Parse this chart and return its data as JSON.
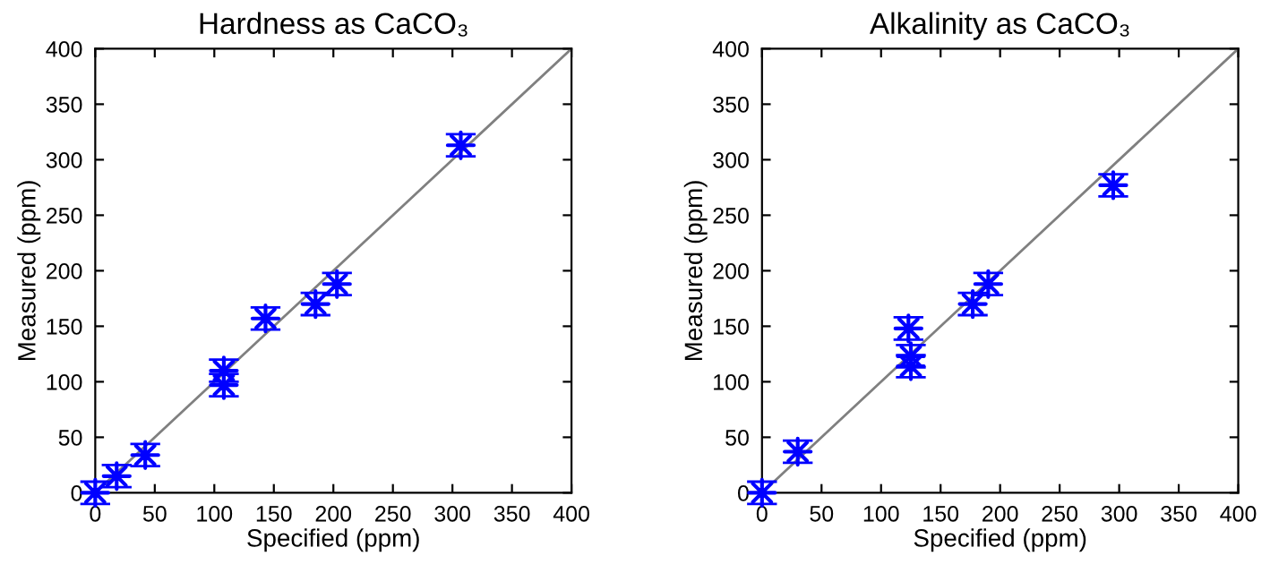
{
  "chart_data": [
    {
      "type": "scatter",
      "title": "Hardness as CaCO₃",
      "xlabel": "Specified (ppm)",
      "ylabel": "Measured (ppm)",
      "xlim": [
        0,
        400
      ],
      "ylim": [
        0,
        400
      ],
      "xticks": [
        0,
        50,
        100,
        150,
        200,
        250,
        300,
        350,
        400
      ],
      "yticks": [
        0,
        50,
        100,
        150,
        200,
        250,
        300,
        350,
        400
      ],
      "grid": false,
      "legend": false,
      "marker": "star",
      "series": [
        {
          "color": "#0000ff",
          "x": [
            0,
            18,
            42,
            108,
            108,
            143,
            185,
            203,
            307
          ],
          "values": [
            0,
            15,
            34,
            110,
            97,
            157,
            170,
            188,
            313
          ],
          "errors": [
            10,
            10,
            10,
            10,
            10,
            10,
            10,
            10,
            10
          ]
        },
        {
          "type": "line",
          "color": "#808080",
          "marker": "none",
          "x": [
            0,
            400
          ],
          "values": [
            0,
            400
          ]
        }
      ]
    },
    {
      "type": "scatter",
      "title": "Alkalinity as CaCO₃",
      "xlabel": "Specified (ppm)",
      "ylabel": "Measured (ppm)",
      "xlim": [
        0,
        400
      ],
      "ylim": [
        0,
        400
      ],
      "xticks": [
        0,
        50,
        100,
        150,
        200,
        250,
        300,
        350,
        400
      ],
      "yticks": [
        0,
        50,
        100,
        150,
        200,
        250,
        300,
        350,
        400
      ],
      "grid": false,
      "legend": false,
      "marker": "star",
      "series": [
        {
          "color": "#0000ff",
          "x": [
            0,
            30,
            123,
            125,
            125,
            177,
            190,
            295
          ],
          "values": [
            0,
            37,
            148,
            123,
            114,
            170,
            188,
            277
          ],
          "errors": [
            10,
            10,
            10,
            10,
            10,
            10,
            10,
            10
          ]
        },
        {
          "type": "line",
          "color": "#808080",
          "marker": "none",
          "x": [
            0,
            400
          ],
          "values": [
            0,
            400
          ]
        }
      ]
    }
  ]
}
